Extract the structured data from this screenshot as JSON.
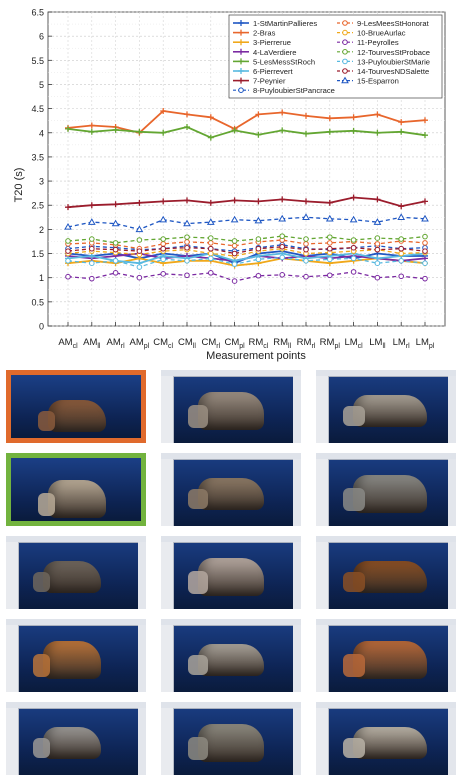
{
  "chart_data": {
    "type": "line",
    "ylabel": "T20 (s)",
    "xlabel": "Measurement points",
    "ylim": [
      0,
      6.5
    ],
    "yticks": [
      "0",
      "0.5",
      "1",
      "1.5",
      "2",
      "2.5",
      "3",
      "3.5",
      "4",
      "4.5",
      "5",
      "5.5",
      "6",
      "6.5"
    ],
    "grid": true,
    "legend_position": "top-right",
    "categories": [
      {
        "base": "AM",
        "sub": "cl"
      },
      {
        "base": "AM",
        "sub": "ll"
      },
      {
        "base": "AM",
        "sub": "rl"
      },
      {
        "base": "AM",
        "sub": "pl"
      },
      {
        "base": "CM",
        "sub": "cl"
      },
      {
        "base": "CM",
        "sub": "ll"
      },
      {
        "base": "CM",
        "sub": "rl"
      },
      {
        "base": "CM",
        "sub": "pl"
      },
      {
        "base": "RM",
        "sub": "cl"
      },
      {
        "base": "RM",
        "sub": "ll"
      },
      {
        "base": "RM",
        "sub": "rl"
      },
      {
        "base": "RM",
        "sub": "pl"
      },
      {
        "base": "LM",
        "sub": "cl"
      },
      {
        "base": "LM",
        "sub": "ll"
      },
      {
        "base": "LM",
        "sub": "rl"
      },
      {
        "base": "LM",
        "sub": "pl"
      }
    ],
    "series": [
      {
        "name": "1-StMartinPallieres",
        "color": "#1f57c3",
        "dash": false,
        "marker": "plus",
        "values": [
          1.5,
          1.45,
          1.5,
          1.4,
          1.5,
          1.45,
          1.5,
          1.3,
          1.5,
          1.55,
          1.45,
          1.5,
          1.4,
          1.5,
          1.45,
          1.45
        ]
      },
      {
        "name": "2-Bras",
        "color": "#e8662c",
        "dash": false,
        "marker": "plus",
        "values": [
          4.1,
          4.15,
          4.12,
          4.0,
          4.45,
          4.38,
          4.32,
          4.08,
          4.38,
          4.42,
          4.35,
          4.3,
          4.32,
          4.38,
          4.22,
          4.26
        ]
      },
      {
        "name": "3-Pierrerue",
        "color": "#f0a81a",
        "dash": false,
        "marker": "plus",
        "values": [
          1.3,
          1.35,
          1.3,
          1.4,
          1.3,
          1.35,
          1.35,
          1.25,
          1.3,
          1.4,
          1.35,
          1.3,
          1.35,
          1.4,
          1.35,
          1.3
        ]
      },
      {
        "name": "4-LaVerdiere",
        "color": "#7b2aa2",
        "dash": false,
        "marker": "plus",
        "values": [
          1.45,
          1.4,
          1.45,
          1.5,
          1.4,
          1.45,
          1.4,
          1.35,
          1.45,
          1.4,
          1.45,
          1.4,
          1.45,
          1.4,
          1.35,
          1.4
        ]
      },
      {
        "name": "5-LesMessStRoch",
        "color": "#63a632",
        "dash": false,
        "marker": "plus",
        "values": [
          4.08,
          4.02,
          4.06,
          4.02,
          4.0,
          4.12,
          3.9,
          4.05,
          3.96,
          4.05,
          3.98,
          4.02,
          4.04,
          4.0,
          4.02,
          3.95
        ]
      },
      {
        "name": "6-Pierrevert",
        "color": "#58b9e0",
        "dash": false,
        "marker": "plus",
        "values": [
          1.4,
          1.45,
          1.35,
          1.3,
          1.45,
          1.4,
          1.5,
          1.35,
          1.45,
          1.5,
          1.4,
          1.45,
          1.5,
          1.4,
          1.45,
          1.5
        ]
      },
      {
        "name": "7-Peynier",
        "color": "#9b1c2c",
        "dash": false,
        "marker": "plus",
        "values": [
          2.46,
          2.5,
          2.52,
          2.55,
          2.58,
          2.6,
          2.55,
          2.6,
          2.58,
          2.62,
          2.58,
          2.55,
          2.66,
          2.62,
          2.48,
          2.58
        ]
      },
      {
        "name": "8-PuyloubierStPancrace",
        "color": "#1f57c3",
        "dash": true,
        "marker": "circle",
        "values": [
          1.6,
          1.65,
          1.62,
          1.58,
          1.6,
          1.66,
          1.6,
          1.55,
          1.62,
          1.68,
          1.6,
          1.58,
          1.62,
          1.66,
          1.6,
          1.62
        ]
      },
      {
        "name": "9-LesMeesStHonorat",
        "color": "#e8662c",
        "dash": true,
        "marker": "circle",
        "values": [
          1.7,
          1.72,
          1.68,
          1.6,
          1.7,
          1.74,
          1.72,
          1.66,
          1.74,
          1.78,
          1.7,
          1.72,
          1.75,
          1.7,
          1.76,
          1.72
        ]
      },
      {
        "name": "10-BrueAurlac",
        "color": "#f0a81a",
        "dash": true,
        "marker": "circle",
        "values": [
          1.5,
          1.55,
          1.52,
          1.48,
          1.55,
          1.58,
          1.5,
          1.45,
          1.55,
          1.6,
          1.5,
          1.52,
          1.55,
          1.58,
          1.5,
          1.52
        ]
      },
      {
        "name": "11-Peyrolles",
        "color": "#7b2aa2",
        "dash": true,
        "marker": "circle",
        "values": [
          1.02,
          0.98,
          1.1,
          1.0,
          1.08,
          1.05,
          1.1,
          0.93,
          1.04,
          1.06,
          1.02,
          1.05,
          1.12,
          1.0,
          1.03,
          0.98
        ]
      },
      {
        "name": "12-TourvesStProbace",
        "color": "#63a632",
        "dash": true,
        "marker": "circle",
        "values": [
          1.76,
          1.8,
          1.72,
          1.78,
          1.8,
          1.84,
          1.82,
          1.76,
          1.8,
          1.86,
          1.8,
          1.84,
          1.78,
          1.82,
          1.8,
          1.85
        ]
      },
      {
        "name": "13-PuyloubierStMarie",
        "color": "#58b9e0",
        "dash": true,
        "marker": "circle",
        "values": [
          1.35,
          1.3,
          1.35,
          1.22,
          1.38,
          1.35,
          1.4,
          1.28,
          1.38,
          1.42,
          1.35,
          1.38,
          1.4,
          1.3,
          1.35,
          1.3
        ]
      },
      {
        "name": "14-TourvesNDSalette",
        "color": "#9b1c2c",
        "dash": true,
        "marker": "circle",
        "values": [
          1.55,
          1.6,
          1.58,
          1.55,
          1.6,
          1.62,
          1.6,
          1.5,
          1.6,
          1.64,
          1.58,
          1.6,
          1.62,
          1.58,
          1.6,
          1.55
        ]
      },
      {
        "name": "15-Esparron",
        "color": "#1f57c3",
        "dash": true,
        "marker": "triangle",
        "values": [
          2.05,
          2.15,
          2.12,
          2.0,
          2.2,
          2.12,
          2.15,
          2.2,
          2.18,
          2.22,
          2.25,
          2.22,
          2.2,
          2.15,
          2.25,
          2.22
        ]
      }
    ]
  },
  "gallery": {
    "colors": {
      "highlight_orange": "#e06a2c",
      "highlight_green": "#72b33e"
    },
    "rows": [
      [
        {
          "highlight": "orange",
          "tone": "#8a5b3c"
        },
        {
          "highlight": "",
          "tone": "#9b8f83"
        },
        {
          "highlight": "",
          "tone": "#a8a196"
        }
      ],
      [
        {
          "highlight": "green",
          "tone": "#b8aa96"
        },
        {
          "highlight": "",
          "tone": "#8d7a66"
        },
        {
          "highlight": "",
          "tone": "#8a8a86"
        }
      ],
      [
        {
          "highlight": "",
          "tone": "#6f665d"
        },
        {
          "highlight": "",
          "tone": "#b5a8a0"
        },
        {
          "highlight": "",
          "tone": "#8a4f24"
        }
      ],
      [
        {
          "highlight": "",
          "tone": "#b9733a"
        },
        {
          "highlight": "",
          "tone": "#a9a39a"
        },
        {
          "highlight": "",
          "tone": "#b8693a"
        }
      ],
      [
        {
          "highlight": "",
          "tone": "#9a9895"
        },
        {
          "highlight": "",
          "tone": "#8d8a80"
        },
        {
          "highlight": "",
          "tone": "#b9b2a6"
        }
      ]
    ]
  }
}
